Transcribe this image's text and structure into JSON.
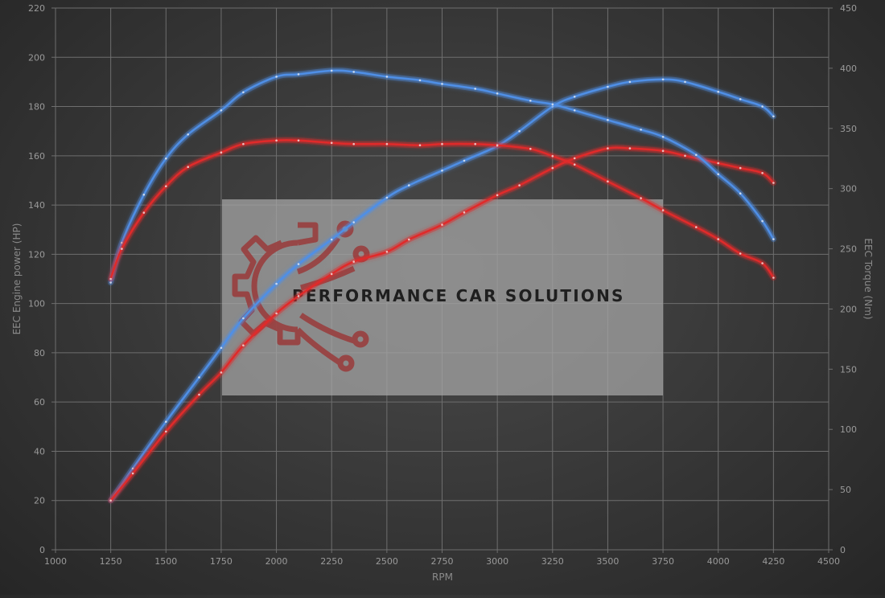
{
  "chart_data": {
    "type": "line",
    "xlabel": "RPM",
    "ylabel_left": "EEC Engine power (HP)",
    "ylabel_right": "EEC Torque (Nm)",
    "xlim": [
      1000,
      4500
    ],
    "ylim_left": [
      0,
      220
    ],
    "ylim_right": [
      0,
      450
    ],
    "x_ticks": [
      1000,
      1250,
      1500,
      1750,
      2000,
      2250,
      2500,
      2750,
      3000,
      3250,
      3500,
      3750,
      4000,
      4250,
      4500
    ],
    "y_ticks_left": [
      0,
      20,
      40,
      60,
      80,
      100,
      120,
      140,
      160,
      180,
      200,
      220
    ],
    "y_ticks_right": [
      0,
      50,
      100,
      150,
      200,
      250,
      300,
      350,
      400,
      450
    ],
    "grid": true,
    "series": [
      {
        "axis": "left",
        "color": "#4f8fe6",
        "x": [
          1250,
          1350,
          1500,
          1650,
          1750,
          1850,
          2000,
          2100,
          2250,
          2350,
          2500,
          2600,
          2750,
          2850,
          3000,
          3100,
          3250,
          3350,
          3500,
          3600,
          3750,
          3850,
          4000,
          4100,
          4200,
          4250
        ],
        "y": [
          20,
          33,
          52,
          70,
          82,
          94,
          108,
          116,
          126,
          133,
          143,
          148,
          154,
          158,
          164,
          170,
          180,
          184,
          188,
          190,
          191,
          190,
          186,
          183,
          180,
          176
        ]
      },
      {
        "axis": "left",
        "color": "#e02b2b",
        "x": [
          1250,
          1350,
          1500,
          1650,
          1750,
          1850,
          2000,
          2100,
          2250,
          2350,
          2500,
          2600,
          2750,
          2850,
          3000,
          3100,
          3250,
          3350,
          3500,
          3600,
          3750,
          3850,
          4000,
          4100,
          4200,
          4250
        ],
        "y": [
          20,
          31,
          48,
          63,
          72,
          83,
          96,
          103,
          112,
          117,
          121,
          126,
          132,
          137,
          144,
          148,
          155,
          159,
          163,
          163,
          162,
          160,
          157,
          155,
          153,
          149
        ]
      },
      {
        "axis": "right",
        "color": "#4f8fe6",
        "x": [
          1250,
          1300,
          1400,
          1500,
          1600,
          1750,
          1850,
          2000,
          2100,
          2250,
          2350,
          2500,
          2650,
          2750,
          2900,
          3000,
          3150,
          3250,
          3350,
          3500,
          3650,
          3750,
          3900,
          4000,
          4100,
          4200,
          4250
        ],
        "y": [
          222,
          255,
          295,
          325,
          345,
          365,
          380,
          393,
          395,
          398,
          397,
          393,
          390,
          387,
          383,
          379,
          373,
          370,
          365,
          357,
          349,
          343,
          328,
          312,
          296,
          273,
          258
        ]
      },
      {
        "axis": "right",
        "color": "#e02b2b",
        "x": [
          1250,
          1300,
          1400,
          1500,
          1600,
          1750,
          1850,
          2000,
          2100,
          2250,
          2350,
          2500,
          2650,
          2750,
          2900,
          3000,
          3150,
          3250,
          3350,
          3500,
          3650,
          3750,
          3900,
          4000,
          4100,
          4200,
          4250
        ],
        "y": [
          225,
          250,
          280,
          302,
          318,
          330,
          337,
          340,
          340,
          338,
          337,
          337,
          336,
          337,
          337,
          336,
          333,
          327,
          320,
          306,
          292,
          282,
          268,
          258,
          246,
          238,
          226
        ]
      }
    ],
    "watermark": {
      "text": "PERFORMANCE CAR SOLUTIONS"
    }
  }
}
